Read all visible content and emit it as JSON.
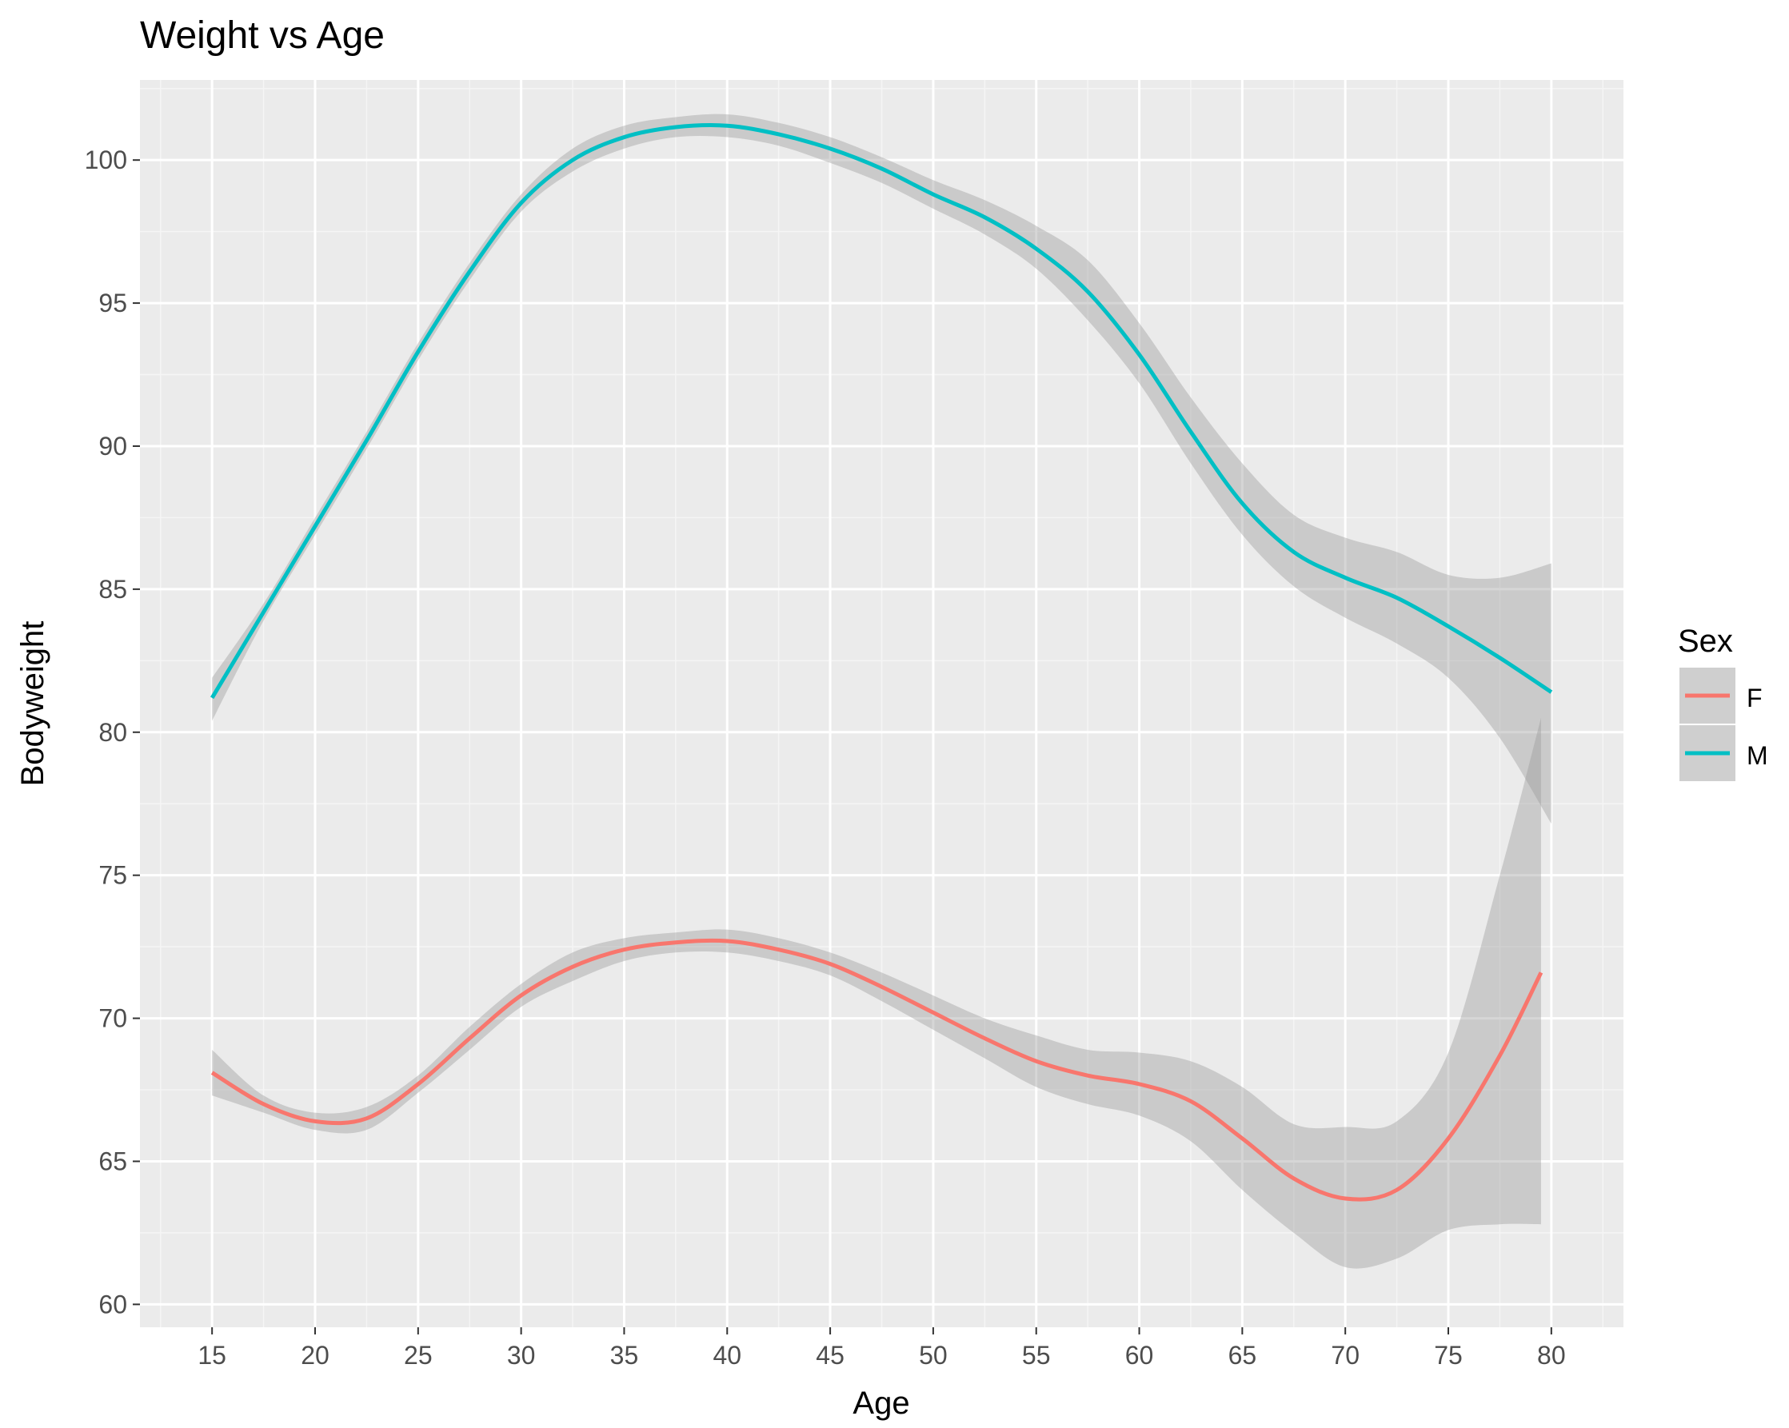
{
  "chart_data": {
    "type": "line",
    "title": "Weight vs Age",
    "xlabel": "Age",
    "ylabel": "Bodyweight",
    "xlim": [
      11.5,
      83.5
    ],
    "ylim": [
      59.2,
      102.8
    ],
    "x_ticks": [
      15,
      20,
      25,
      30,
      35,
      40,
      45,
      50,
      55,
      60,
      65,
      70,
      75,
      80
    ],
    "y_ticks": [
      60,
      65,
      70,
      75,
      80,
      85,
      90,
      95,
      100
    ],
    "grid": true,
    "legend": {
      "title": "Sex",
      "placement": "right"
    },
    "series": [
      {
        "name": "F",
        "color": "#F8766D",
        "x": [
          15,
          17.5,
          20,
          22.5,
          25,
          27.5,
          30,
          32.5,
          35,
          37.5,
          40,
          42.5,
          45,
          47.5,
          50,
          52.5,
          55,
          57.5,
          60,
          62.5,
          65,
          67.5,
          70,
          72.5,
          75,
          77.5,
          79.5
        ],
        "y": [
          68.1,
          67.0,
          66.4,
          66.5,
          67.7,
          69.3,
          70.8,
          71.8,
          72.4,
          72.65,
          72.7,
          72.4,
          71.9,
          71.1,
          70.2,
          69.3,
          68.5,
          68.0,
          67.7,
          67.1,
          65.8,
          64.4,
          63.7,
          64.0,
          65.8,
          68.7,
          71.6
        ],
        "band_upper": [
          68.9,
          67.3,
          66.7,
          66.9,
          68.0,
          69.7,
          71.2,
          72.3,
          72.8,
          73.0,
          73.1,
          72.8,
          72.3,
          71.6,
          70.8,
          70.0,
          69.4,
          68.9,
          68.8,
          68.5,
          67.6,
          66.3,
          66.2,
          66.4,
          68.8,
          75.0,
          80.5
        ],
        "band_lower": [
          67.3,
          66.7,
          66.1,
          66.1,
          67.4,
          68.9,
          70.4,
          71.3,
          72.0,
          72.3,
          72.3,
          72.0,
          71.5,
          70.6,
          69.6,
          68.6,
          67.6,
          67.0,
          66.6,
          65.7,
          64.0,
          62.5,
          61.3,
          61.6,
          62.6,
          62.8,
          62.8
        ]
      },
      {
        "name": "M",
        "color": "#00BFC4",
        "x": [
          15,
          17.5,
          20,
          22.5,
          25,
          27.5,
          30,
          32.5,
          35,
          37.5,
          40,
          42.5,
          45,
          47.5,
          50,
          52.5,
          55,
          57.5,
          60,
          62.5,
          65,
          67.5,
          70,
          72.5,
          75,
          77.5,
          80
        ],
        "y": [
          81.2,
          84.2,
          87.2,
          90.2,
          93.3,
          96.1,
          98.5,
          100.0,
          100.8,
          101.15,
          101.2,
          100.9,
          100.4,
          99.7,
          98.8,
          98.0,
          96.9,
          95.4,
          93.2,
          90.5,
          88.0,
          86.3,
          85.4,
          84.7,
          83.7,
          82.6,
          81.4
        ],
        "band_upper": [
          81.9,
          84.5,
          87.5,
          90.5,
          93.6,
          96.4,
          98.8,
          100.4,
          101.2,
          101.5,
          101.6,
          101.3,
          100.8,
          100.1,
          99.3,
          98.6,
          97.7,
          96.5,
          94.3,
          91.7,
          89.4,
          87.6,
          86.8,
          86.3,
          85.5,
          85.4,
          85.9
        ],
        "band_lower": [
          80.4,
          83.9,
          86.9,
          89.9,
          93.0,
          95.8,
          98.2,
          99.6,
          100.4,
          100.8,
          100.8,
          100.5,
          99.9,
          99.2,
          98.3,
          97.4,
          96.2,
          94.4,
          92.2,
          89.4,
          86.9,
          85.1,
          84.0,
          83.1,
          81.9,
          79.8,
          76.8
        ]
      }
    ]
  }
}
